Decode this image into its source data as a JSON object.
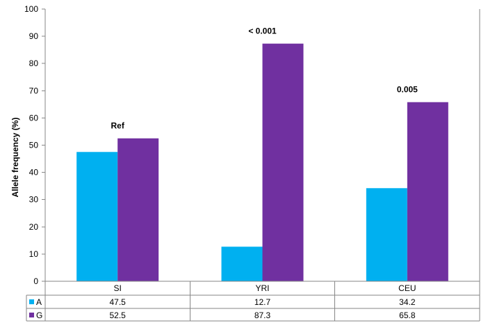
{
  "chart_data": {
    "type": "bar",
    "categories": [
      "SI",
      "YRI",
      "CEU"
    ],
    "series": [
      {
        "name": "A",
        "values": [
          47.5,
          12.7,
          34.2
        ],
        "color": "#00B0F0"
      },
      {
        "name": "G",
        "values": [
          52.5,
          87.3,
          65.8
        ],
        "color": "#7030A0"
      }
    ],
    "table_values": [
      [
        "47.5",
        "12.7",
        "34.2"
      ],
      [
        "52.5",
        "87.3",
        "65.8"
      ]
    ],
    "annotations": [
      "Ref",
      "< 0.001",
      "0.005"
    ],
    "ylabel": "Allele frequency (%)",
    "ylim": [
      0,
      100
    ],
    "yticks": [
      0,
      10,
      20,
      30,
      40,
      50,
      60,
      70,
      80,
      90,
      100
    ],
    "grid": false,
    "legend": "data-table-left"
  }
}
